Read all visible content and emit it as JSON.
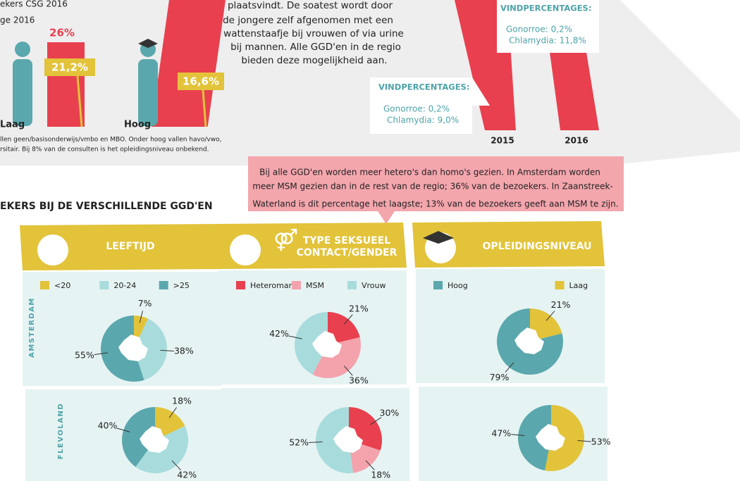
{
  "top": {
    "subtitle1": "ekers CSG 2016",
    "subtitle2": "ge 2016",
    "laag": {
      "label": "Laag",
      "red": "26%",
      "yellow": "21,2%"
    },
    "hoog": {
      "label": "Hoog",
      "yellow": "16,6%"
    },
    "footnote": [
      "llen geen/basisonderwijs/vmbo en MBO. Onder hoog vallen havo/vwo,",
      "rsitair. Bij 8% van de consulten is het opleidingsniveau onbekend."
    ],
    "body": [
      "plaatsvindt. De soatest wordt door",
      "de jongere zelf afgenomen met een",
      "wattenstaafje bij vrouwen of via urine",
      "bij mannen. Alle GGD'en in de regio",
      "bieden deze mogelijkheid aan."
    ],
    "years": [
      "2015",
      "2016"
    ],
    "callouts": [
      {
        "title": "VINDPERCENTAGES:",
        "lines": [
          "Gonorroe: 0,2%",
          "Chlamydia: 9,0%"
        ]
      },
      {
        "title": "VINDPERCENTAGES:",
        "lines": [
          "Gonorroe: 0,2%",
          "Chlamydia: 11,8%"
        ]
      }
    ]
  },
  "note": [
    "Bij alle GGD'en worden meer hetero's dan homo's gezien. In Amsterdam worden",
    "meer MSM gezien dan in de rest van de regio; 36% van de bezoekers. In Zaanstreek-",
    "Waterland is dit percentage het laagste; 13% van de bezoekers geeft aan MSM te zijn."
  ],
  "section_title": "EKERS BIJ DE VERSCHILLENDE GGD'EN",
  "rows": [
    "AMSTERDAM",
    "FLEVOLAND"
  ],
  "chart_data": [
    {
      "type": "pie",
      "title": "LEEFTIJD",
      "categories": [
        "<20",
        "20-24",
        ">25"
      ],
      "colors": [
        "#e2c33a",
        "#a8dcdc",
        "#5aa8ad"
      ],
      "direction": "clockwise",
      "series": [
        {
          "values": [
            7,
            38,
            55
          ],
          "value_labels": [
            "7%",
            "38%",
            "55%"
          ]
        },
        {
          "values": [
            18,
            42,
            40
          ],
          "value_labels": [
            "18%",
            "42%",
            "40%"
          ]
        }
      ]
    },
    {
      "type": "pie",
      "title": "TYPE SEKSUEEL CONTACT/GENDER",
      "categories": [
        "Heteroman",
        "MSM",
        "Vrouw"
      ],
      "colors": [
        "#e8404f",
        "#f4a3ad",
        "#a8dcdc"
      ],
      "direction": "clockwise",
      "series": [
        {
          "values": [
            21,
            36,
            42
          ],
          "value_labels": [
            "21%",
            "36%",
            "42%"
          ]
        },
        {
          "values": [
            30,
            18,
            52
          ],
          "value_labels": [
            "30%",
            "18%",
            "52%"
          ]
        }
      ]
    },
    {
      "type": "pie",
      "title": "OPLEIDINGSNIVEAU",
      "categories": [
        "Hoog",
        "Laag"
      ],
      "colors": [
        "#5aa8ad",
        "#e2c33a"
      ],
      "direction": "counterclockwise",
      "series": [
        {
          "values": [
            79,
            21
          ],
          "value_labels": [
            "79%",
            "21%"
          ]
        },
        {
          "values": [
            47,
            53
          ],
          "value_labels": [
            "47%",
            "53%"
          ]
        }
      ]
    }
  ]
}
